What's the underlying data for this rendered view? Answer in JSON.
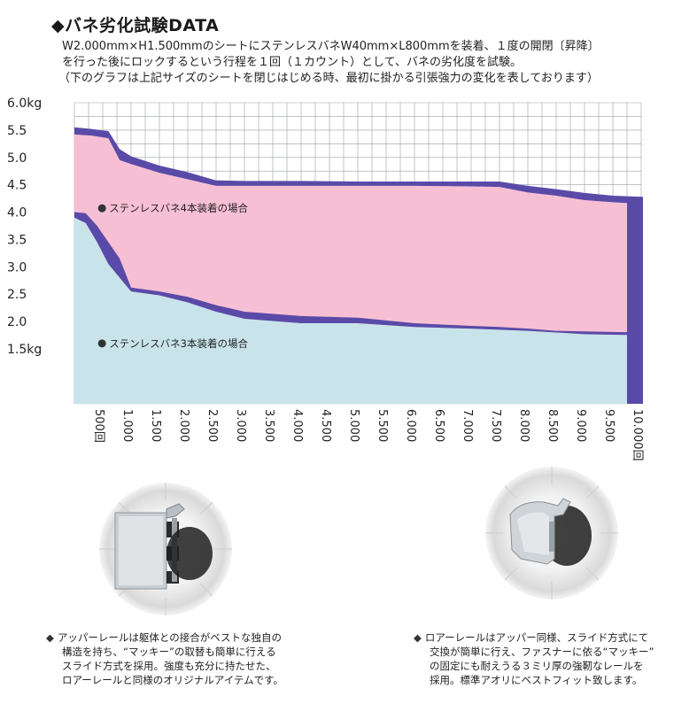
{
  "header": {
    "title": "◆バネ劣化試験DATA",
    "desc_lines": [
      "W2.000mm×H1.500mmのシートにステンレスバネW40mm×L800mmを装着、１度の開閉〔昇降〕",
      "を行った後にロックするという行程を１回（１カウント）として、バネの劣化度を試験。",
      "（下のグラフは上記サイズのシートを閉じはじめる時、最初に掛かる引張強力の変化を表しております）"
    ]
  },
  "chart_data": {
    "type": "area",
    "x_unit": "回",
    "y_unit": "kg",
    "ylim": [
      0.5,
      6.0
    ],
    "xlim": [
      0,
      10000
    ],
    "grid": true,
    "y_ticks": [
      {
        "value": 6.0,
        "label": "6.0kg"
      },
      {
        "value": 5.5,
        "label": "5.5"
      },
      {
        "value": 5.0,
        "label": "5.0"
      },
      {
        "value": 4.5,
        "label": "4.5"
      },
      {
        "value": 4.0,
        "label": "4.0"
      },
      {
        "value": 3.5,
        "label": "3.5"
      },
      {
        "value": 3.0,
        "label": "3.0"
      },
      {
        "value": 2.5,
        "label": "2.5"
      },
      {
        "value": 2.0,
        "label": "2.0"
      },
      {
        "value": 1.5,
        "label": "1.5kg"
      }
    ],
    "x_ticks": [
      {
        "value": 500,
        "label": "500回"
      },
      {
        "value": 1000,
        "label": "1.000"
      },
      {
        "value": 1500,
        "label": "1.500"
      },
      {
        "value": 2000,
        "label": "2.000"
      },
      {
        "value": 2500,
        "label": "2.500"
      },
      {
        "value": 3000,
        "label": "3.000"
      },
      {
        "value": 3500,
        "label": "3.500"
      },
      {
        "value": 4000,
        "label": "4.000"
      },
      {
        "value": 4500,
        "label": "4.500"
      },
      {
        "value": 5000,
        "label": "5.000"
      },
      {
        "value": 5500,
        "label": "5.500"
      },
      {
        "value": 6000,
        "label": "6.000"
      },
      {
        "value": 6500,
        "label": "6.500"
      },
      {
        "value": 7000,
        "label": "7.000"
      },
      {
        "value": 7500,
        "label": "7.500"
      },
      {
        "value": 8000,
        "label": "8.000"
      },
      {
        "value": 8500,
        "label": "8.500"
      },
      {
        "value": 9000,
        "label": "9.000"
      },
      {
        "value": 9500,
        "label": "9.500"
      },
      {
        "value": 10000,
        "label": "10.000回"
      }
    ],
    "series": [
      {
        "name": "ステンレスバネ4本装着の場合",
        "fill": "#f7bfd3",
        "band": "#5a4aa8",
        "x": [
          0,
          300,
          600,
          800,
          1000,
          1500,
          2000,
          2500,
          3000,
          4000,
          5000,
          6000,
          7000,
          7500,
          8000,
          8500,
          9000,
          9500,
          10000
        ],
        "upper": [
          5.55,
          5.52,
          5.48,
          5.15,
          5.02,
          4.85,
          4.73,
          4.58,
          4.57,
          4.57,
          4.56,
          4.56,
          4.56,
          4.56,
          4.48,
          4.42,
          4.35,
          4.3,
          4.28
        ],
        "lower": [
          5.42,
          5.4,
          5.35,
          4.95,
          4.88,
          4.72,
          4.6,
          4.48,
          4.48,
          4.48,
          4.48,
          4.48,
          4.47,
          4.46,
          4.36,
          4.3,
          4.22,
          4.18,
          4.15
        ]
      },
      {
        "name": "ステンレスバネ3本装着の場合",
        "fill": "#c8e4ea",
        "band": "#5a4aa8",
        "x": [
          0,
          200,
          400,
          600,
          800,
          1000,
          1500,
          2000,
          2500,
          3000,
          4000,
          5000,
          6000,
          7000,
          7500,
          8000,
          8500,
          9000,
          9500,
          10000
        ],
        "upper": [
          4.0,
          3.98,
          3.75,
          3.45,
          3.15,
          2.62,
          2.55,
          2.45,
          2.3,
          2.18,
          2.1,
          2.07,
          1.97,
          1.92,
          1.9,
          1.87,
          1.83,
          1.82,
          1.81,
          1.8
        ],
        "lower": [
          3.9,
          3.8,
          3.45,
          3.05,
          2.8,
          2.55,
          2.48,
          2.35,
          2.18,
          2.05,
          1.97,
          1.97,
          1.9,
          1.87,
          1.85,
          1.83,
          1.8,
          1.77,
          1.76,
          1.75
        ]
      }
    ],
    "annotations": [
      {
        "text": "ステンレスバネ4本装着の場合",
        "x": 1050,
        "y": 4.07
      },
      {
        "text": "ステンレスバネ3本装着の場合",
        "x": 1050,
        "y": 1.6
      }
    ]
  },
  "captions": {
    "left": [
      "アッパーレールは躯体との接合がベストな独自の",
      "構造を持ち、“マッキー”の取替も簡単に行える",
      "スライド方式を採用。強度も充分に持たせた、",
      "ロアーレールと同様のオリジナルアイテムです。"
    ],
    "right": [
      "ロアーレールはアッパー同様、スライド方式にて",
      "交換が簡単に行え、ファスナーに依る“マッキー”",
      "の固定にも耐えうる３ミリ厚の強靭なレールを",
      "採用。標準アオリにベストフィット致します。"
    ]
  },
  "icons": {
    "bullet": "◆"
  },
  "colors": {
    "grid_bg": "#ffffff",
    "grid_line": "#9aa0a6",
    "pink": "#f7bfd3",
    "teal": "#c8e4ea",
    "band": "#5a4aa8"
  }
}
